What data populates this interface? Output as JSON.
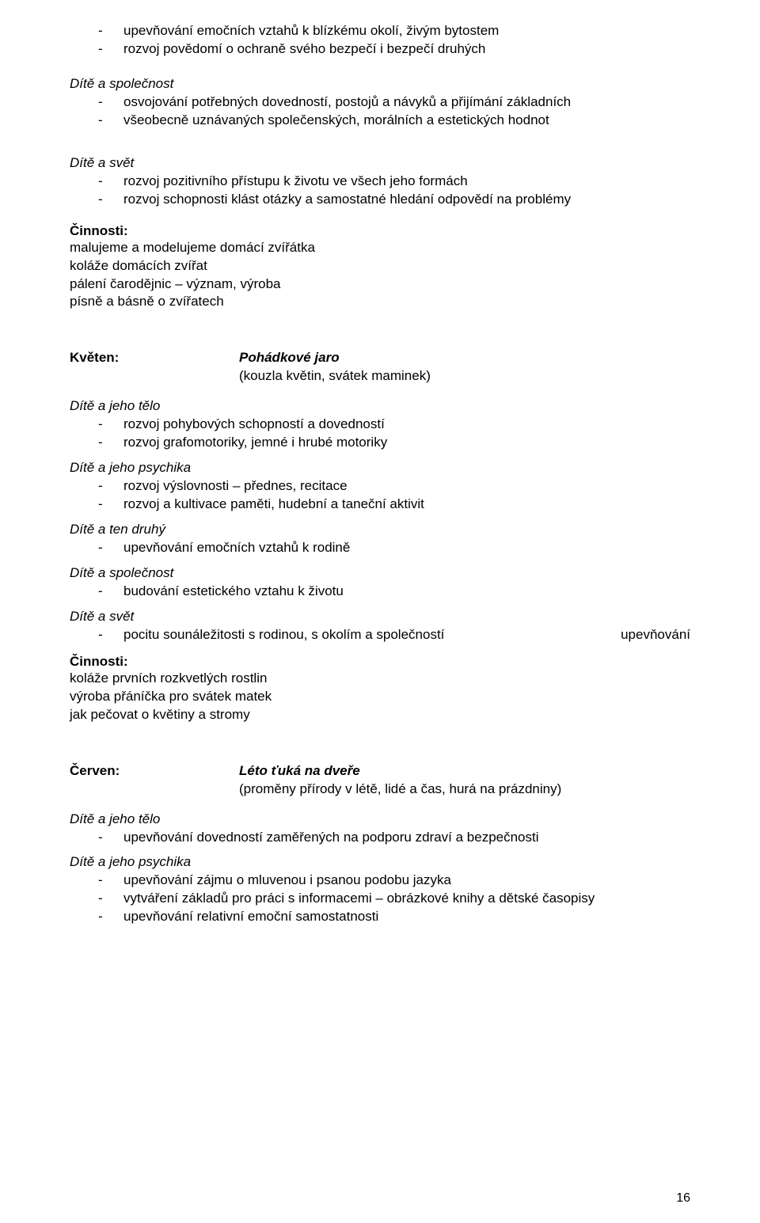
{
  "colors": {
    "text": "#000000",
    "background": "#ffffff"
  },
  "typography": {
    "body_fontsize_pt": 12,
    "font_family": "Arial, Helvetica, sans-serif"
  },
  "top_list": [
    "upevňování emočních vztahů k blízkému okolí, živým bytostem",
    "rozvoj povědomí o ochraně svého bezpečí i bezpečí druhých"
  ],
  "sec_spolecnost": {
    "heading": "Dítě a společnost",
    "items": [
      "osvojování potřebných dovedností, postojů a návyků a přijímání základních",
      "všeobecně uznávaných společenských, morálních a estetických hodnot"
    ]
  },
  "sec_svet": {
    "heading": "Dítě a svět",
    "items": [
      "rozvoj pozitivního přístupu k životu ve všech jeho formách",
      "rozvoj schopnosti klást otázky a samostatné hledání odpovědí na problémy"
    ]
  },
  "cinnosti1": {
    "label": "Činnosti:",
    "lines": [
      "malujeme a modelujeme domácí zvířátka",
      "koláže domácích zvířat",
      "pálení čarodějnic – význam, výroba",
      "písně a básně o zvířatech"
    ]
  },
  "kveten": {
    "month_label": "Květen:",
    "title": "Pohádkové jaro",
    "subtitle": "(kouzla květin, svátek maminek)",
    "telo": {
      "heading": "Dítě a jeho tělo",
      "items": [
        "rozvoj pohybových schopností a dovedností",
        "rozvoj grafomotoriky, jemné i hrubé motoriky"
      ]
    },
    "psychika": {
      "heading": "Dítě a jeho psychika",
      "items": [
        "rozvoj výslovnosti – přednes, recitace",
        "rozvoj a kultivace paměti, hudební a taneční aktivit"
      ]
    },
    "tendruhy": {
      "heading": "Dítě a ten druhý",
      "items": [
        "upevňování emočních vztahů k rodině"
      ]
    },
    "spolecnost": {
      "heading": "Dítě a společnost",
      "items": [
        "budování estetického vztahu k životu"
      ]
    },
    "svet": {
      "heading": "Dítě a svět",
      "special_trail": "upevňování",
      "special_sub": "pocitu sounáležitosti s rodinou, s okolím a společností"
    }
  },
  "cinnosti2": {
    "label": "Činnosti:",
    "lines": [
      "koláže prvních rozkvetlých rostlin",
      "výroba přáníčka pro svátek matek",
      "jak pečovat o květiny a stromy"
    ]
  },
  "cerven": {
    "month_label": "Červen:",
    "title": "Léto ťuká na dveře",
    "subtitle": "(proměny přírody v létě, lidé a čas, hurá na prázdniny)",
    "telo": {
      "heading": "Dítě a jeho tělo",
      "items": [
        "upevňování dovedností zaměřených na podporu zdraví a bezpečnosti"
      ]
    },
    "psychika": {
      "heading": "Dítě a jeho psychika",
      "items": [
        "upevňování zájmu o mluvenou i psanou podobu jazyka",
        "vytváření základů pro práci s informacemi – obrázkové knihy a dětské časopisy",
        "upevňování relativní emoční samostatnosti"
      ]
    }
  },
  "page_number": "16"
}
